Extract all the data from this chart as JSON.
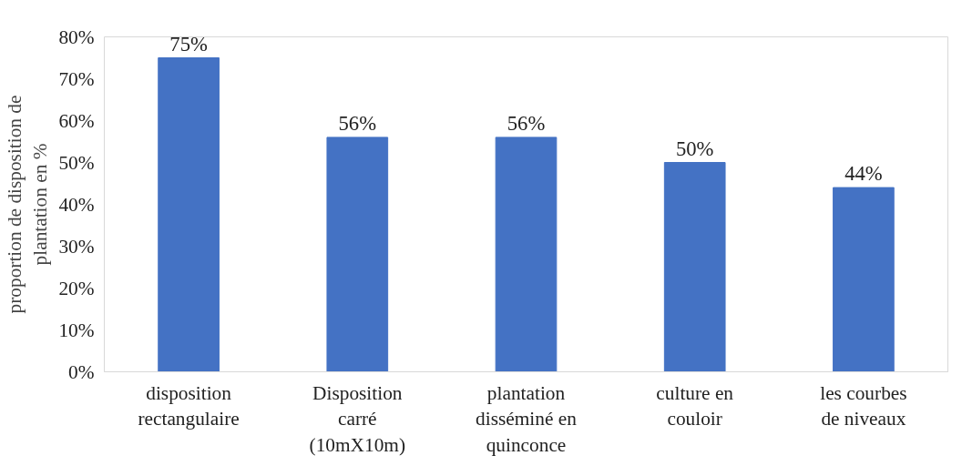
{
  "chart_data": {
    "type": "bar",
    "ylabel": "proportion de disposition de\nplantation en %",
    "categories": [
      "disposition\nrectangulaire",
      "Disposition\ncarré\n(10mX10m)",
      "plantation\ndisséminé en\nquinconce",
      "culture en\ncouloir",
      "les courbes\nde niveaux"
    ],
    "values": [
      75,
      56,
      56,
      50,
      44
    ],
    "value_labels": [
      "75%",
      "56%",
      "56%",
      "50%",
      "44%"
    ],
    "color": "#4472c4",
    "ylim": [
      0,
      80
    ],
    "yticks": [
      {
        "value": 0,
        "label": "0%"
      },
      {
        "value": 10,
        "label": "10%"
      },
      {
        "value": 20,
        "label": "20%"
      },
      {
        "value": 30,
        "label": "30%"
      },
      {
        "value": 40,
        "label": "40%"
      },
      {
        "value": 50,
        "label": "50%"
      },
      {
        "value": 60,
        "label": "60%"
      },
      {
        "value": 70,
        "label": "70%"
      },
      {
        "value": 80,
        "label": "80%"
      }
    ],
    "grid": false
  }
}
